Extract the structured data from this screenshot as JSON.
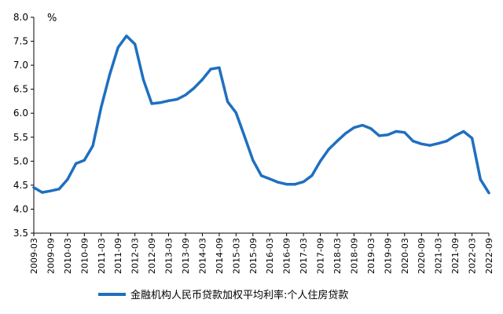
{
  "chart_data": {
    "type": "line",
    "title": "",
    "ylabel": "%",
    "xlabel": "",
    "ylim": [
      3.5,
      8.0
    ],
    "yticks": [
      "3.5",
      "4.0",
      "4.5",
      "5.0",
      "5.5",
      "6.0",
      "6.5",
      "7.0",
      "7.5",
      "8.0"
    ],
    "xtick_labels": [
      "2009-03",
      "2009-09",
      "2010-03",
      "2010-09",
      "2011-03",
      "2011-09",
      "2012-03",
      "2012-09",
      "2013-03",
      "2013-09",
      "2014-03",
      "2014-09",
      "2015-03",
      "2015-09",
      "2016-03",
      "2016-09",
      "2017-03",
      "2017-09",
      "2018-03",
      "2018-09",
      "2019-03",
      "2019-09",
      "2020-03",
      "2020-09",
      "2021-03",
      "2021-09",
      "2022-03",
      "2022-09"
    ],
    "grid": false,
    "legend_position": "bottom",
    "colors": {
      "line": "#1f6fc0",
      "axis": "#000000"
    },
    "series": [
      {
        "name": "金融机构人民币贷款加权平均利率:个人住房贷款",
        "x": [
          "2009-03",
          "2009-06",
          "2009-09",
          "2009-12",
          "2010-03",
          "2010-06",
          "2010-09",
          "2010-12",
          "2011-03",
          "2011-06",
          "2011-09",
          "2011-12",
          "2012-03",
          "2012-06",
          "2012-09",
          "2012-12",
          "2013-03",
          "2013-06",
          "2013-09",
          "2013-12",
          "2014-03",
          "2014-06",
          "2014-09",
          "2014-12",
          "2015-03",
          "2015-06",
          "2015-09",
          "2015-12",
          "2016-03",
          "2016-06",
          "2016-09",
          "2016-12",
          "2017-03",
          "2017-06",
          "2017-09",
          "2017-12",
          "2018-03",
          "2018-06",
          "2018-09",
          "2018-12",
          "2019-03",
          "2019-06",
          "2019-09",
          "2019-12",
          "2020-03",
          "2020-06",
          "2020-09",
          "2020-12",
          "2021-03",
          "2021-06",
          "2021-09",
          "2021-12",
          "2022-03",
          "2022-06",
          "2022-09"
        ],
        "values": [
          4.45,
          4.35,
          4.38,
          4.42,
          4.62,
          4.95,
          5.02,
          5.32,
          6.13,
          6.8,
          7.37,
          7.61,
          7.44,
          6.7,
          6.2,
          6.22,
          6.26,
          6.29,
          6.38,
          6.52,
          6.7,
          6.92,
          6.95,
          6.24,
          6.01,
          5.52,
          5.02,
          4.7,
          4.63,
          4.56,
          4.52,
          4.52,
          4.57,
          4.7,
          5.0,
          5.25,
          5.42,
          5.58,
          5.7,
          5.75,
          5.68,
          5.53,
          5.55,
          5.62,
          5.6,
          5.42,
          5.36,
          5.33,
          5.37,
          5.42,
          5.53,
          5.62,
          5.48,
          4.62,
          4.34
        ]
      }
    ]
  }
}
